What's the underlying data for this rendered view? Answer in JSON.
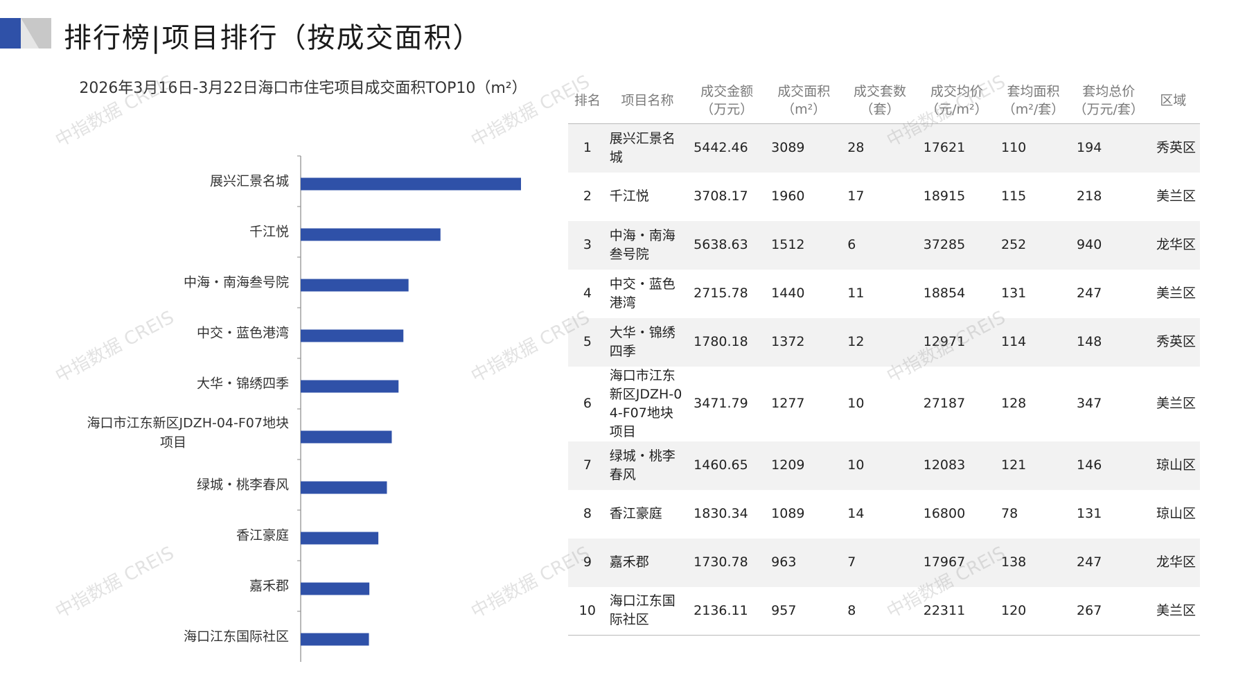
{
  "header": {
    "title": "排行榜|项目排行（按成交面积）"
  },
  "colors": {
    "accent": "#2f51a8",
    "logo_gray": "#c8c8c8"
  },
  "chart_data": {
    "type": "bar",
    "orientation": "horizontal",
    "title": "2026年3月16日-3月22日海口市住宅项目成交面积TOP10（m²）",
    "categories": [
      "展兴汇景名城",
      "千江悦",
      "中海・南海叁号院",
      "中交・蓝色港湾",
      "大华・锦绣四季",
      "海口市江东新区JDZH-04-F07地块项目",
      "绿城・桃李春风",
      "香江豪庭",
      "嘉禾郡",
      "海口江东国际社区"
    ],
    "values": [
      3089,
      1960,
      1512,
      1440,
      1372,
      1277,
      1209,
      1089,
      963,
      957
    ],
    "xlabel": "",
    "ylabel": "",
    "xlim": [
      0,
      3600
    ],
    "grid": false,
    "legend": "none"
  },
  "table": {
    "headers": [
      "排名",
      "项目名称",
      "成交金额（万元）",
      "成交面积（m²）",
      "成交套数（套）",
      "成交均价（元/m²）",
      "套均面积（m²/套）",
      "套均总价（万元/套）",
      "区域"
    ],
    "rows": [
      [
        "1",
        "展兴汇景名城",
        "5442.46",
        "3089",
        "28",
        "17621",
        "110",
        "194",
        "秀英区"
      ],
      [
        "2",
        "千江悦",
        "3708.17",
        "1960",
        "17",
        "18915",
        "115",
        "218",
        "美兰区"
      ],
      [
        "3",
        "中海・南海叁号院",
        "5638.63",
        "1512",
        "6",
        "37285",
        "252",
        "940",
        "龙华区"
      ],
      [
        "4",
        "中交・蓝色港湾",
        "2715.78",
        "1440",
        "11",
        "18854",
        "131",
        "247",
        "美兰区"
      ],
      [
        "5",
        "大华・锦绣四季",
        "1780.18",
        "1372",
        "12",
        "12971",
        "114",
        "148",
        "秀英区"
      ],
      [
        "6",
        "海口市江东新区JDZH-04-F07地块项目",
        "3471.79",
        "1277",
        "10",
        "27187",
        "128",
        "347",
        "美兰区"
      ],
      [
        "7",
        "绿城・桃李春风",
        "1460.65",
        "1209",
        "10",
        "12083",
        "121",
        "146",
        "琼山区"
      ],
      [
        "8",
        "香江豪庭",
        "1830.34",
        "1089",
        "14",
        "16800",
        "78",
        "131",
        "琼山区"
      ],
      [
        "9",
        "嘉禾郡",
        "1730.78",
        "963",
        "7",
        "17967",
        "138",
        "247",
        "龙华区"
      ],
      [
        "10",
        "海口江东国际社区",
        "2136.11",
        "957",
        "8",
        "22311",
        "120",
        "267",
        "美兰区"
      ]
    ]
  },
  "watermark": "中指数据 CREIS"
}
